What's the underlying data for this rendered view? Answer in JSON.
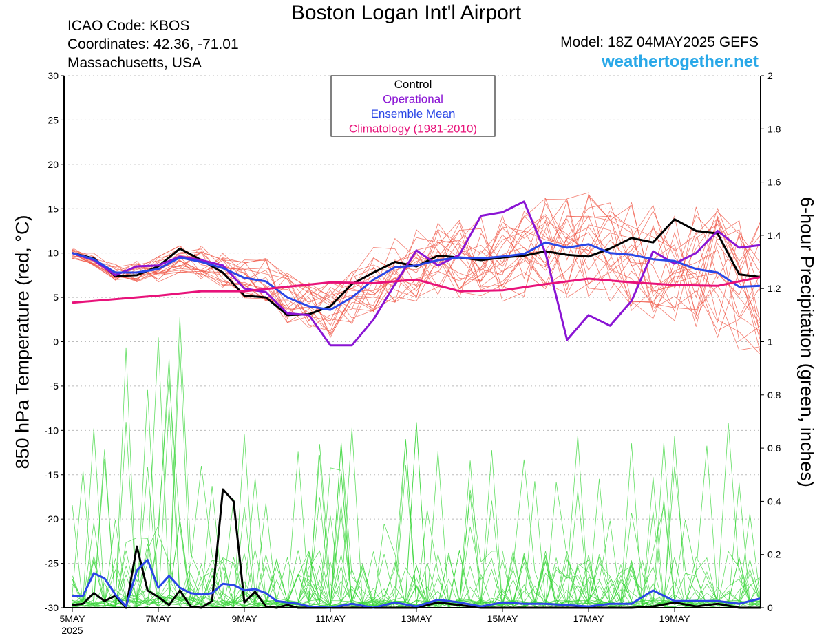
{
  "header": {
    "title": "Boston Logan Int'l Airport",
    "icao": "ICAO Code: KBOS",
    "coords": "Coordinates: 42.36, -71.01",
    "region": "Massachusetts, USA",
    "model": "Model: 18Z 04MAY2025 GEFS",
    "site": "weathertogether.net"
  },
  "colors": {
    "control": "#000000",
    "operational": "#8a14d4",
    "ensemble_mean": "#2a46e6",
    "climatology": "#e8127a",
    "members_temp": "#f05a4a",
    "members_precip": "#3ad63a"
  },
  "chart_data": {
    "type": "line",
    "title": "Boston Logan Int'l Airport",
    "ylabel": "850 hPa Temperature (red, °C)",
    "y2label": "6-hour Precipitation (green, inches)",
    "ylim": [
      -30,
      30
    ],
    "y2lim": [
      0,
      2
    ],
    "yticks": [
      "30",
      "25",
      "20",
      "15",
      "10",
      "5",
      "0",
      "-5",
      "-10",
      "-15",
      "-20",
      "-25",
      "-30"
    ],
    "y2ticks": [
      "2",
      "1.8",
      "1.6",
      "1.4",
      "1.2",
      "1",
      "0.8",
      "0.6",
      "0.4",
      "0.2",
      "0"
    ],
    "xlim_days": [
      0,
      16
    ],
    "xticks": [
      "5MAY",
      "7MAY",
      "9MAY",
      "11MAY",
      "13MAY",
      "15MAY",
      "17MAY",
      "19MAY"
    ],
    "xtick_year": "2025",
    "grid": true,
    "legend_position": "top-center",
    "legend": [
      "Control",
      "Operational",
      "Ensemble Mean",
      "Climatology (1981-2010)"
    ],
    "temp_series": [
      {
        "name": "Control",
        "x": [
          0,
          0.5,
          1,
          1.5,
          2,
          2.5,
          3,
          3.5,
          4,
          4.5,
          5,
          5.5,
          6,
          6.5,
          7,
          7.5,
          8,
          8.5,
          9,
          9.5,
          10,
          10.5,
          11,
          11.5,
          12,
          12.5,
          13,
          13.5,
          14,
          14.5,
          15,
          15.5,
          16
        ],
        "y": [
          10,
          9.4,
          7.4,
          7.5,
          8.5,
          10.5,
          9.2,
          7.8,
          5.2,
          5,
          3,
          3.1,
          4,
          6.5,
          7.8,
          9,
          8.5,
          9.7,
          9.5,
          9.2,
          9.5,
          9.7,
          10.2,
          9.8,
          9.6,
          10.5,
          11.7,
          11.2,
          13.8,
          12.5,
          12.2,
          7.6,
          7.3
        ]
      },
      {
        "name": "Operational",
        "x": [
          0,
          0.5,
          1,
          1.5,
          2,
          2.5,
          3,
          3.5,
          4,
          4.5,
          5,
          5.5,
          6,
          6.5,
          7,
          7.5,
          8,
          8.5,
          9,
          9.5,
          10,
          10.5,
          11,
          11.5,
          12,
          12.5,
          13,
          13.5,
          14,
          14.5,
          15,
          15.5,
          16
        ],
        "y": [
          10,
          9.2,
          7.5,
          8.5,
          8.6,
          9.6,
          9.2,
          8.6,
          6,
          5.6,
          3.2,
          3,
          -0.4,
          -0.4,
          2.5,
          6.5,
          10.3,
          8.6,
          9.8,
          14.2,
          14.6,
          15.8,
          10,
          0.2,
          3,
          1.8,
          4.6,
          10.2,
          8.8,
          10,
          12.5,
          10.6,
          10.9
        ]
      },
      {
        "name": "Ensemble Mean",
        "x": [
          0,
          0.5,
          1,
          1.5,
          2,
          2.5,
          3,
          3.5,
          4,
          4.5,
          5,
          5.5,
          6,
          6.5,
          7,
          7.5,
          8,
          8.5,
          9,
          9.5,
          10,
          10.5,
          11,
          11.5,
          12,
          12.5,
          13,
          13.5,
          14,
          14.5,
          15,
          15.5,
          16
        ],
        "y": [
          10,
          9.3,
          7.8,
          7.8,
          8.2,
          9.5,
          9,
          8.3,
          7.2,
          6.8,
          5,
          4,
          3.6,
          5,
          7,
          8.4,
          8.6,
          9.2,
          9.5,
          9.4,
          9.6,
          9.9,
          11.2,
          10.6,
          11,
          10,
          9.8,
          9.3,
          9.1,
          8.2,
          7.8,
          6.2,
          6.3
        ]
      },
      {
        "name": "Climatology (1981-2010)",
        "x": [
          0,
          2,
          3,
          4,
          5,
          6,
          7,
          8,
          9,
          10,
          11,
          12,
          13,
          14,
          15,
          16
        ],
        "y": [
          4.4,
          5.2,
          5.7,
          5.7,
          6.2,
          6.7,
          6.6,
          7,
          5.7,
          5.8,
          6.5,
          7.1,
          6.7,
          6.4,
          6.3,
          7.3
        ]
      }
    ],
    "precip_series": [
      {
        "name": "Control",
        "x": [
          0,
          0.25,
          0.5,
          0.75,
          1,
          1.25,
          1.5,
          1.75,
          2,
          2.25,
          2.5,
          2.75,
          3,
          3.25,
          3.5,
          3.75,
          4,
          4.25,
          4.5,
          4.75,
          5,
          5.25,
          5.5,
          6,
          6.5,
          7,
          7.5,
          8,
          8.5,
          9,
          9.5,
          10,
          10.5,
          11,
          11.5,
          12,
          12.5,
          13,
          13.5,
          14,
          14.5,
          15,
          15.5,
          16
        ],
        "y": [
          0.01,
          0.015,
          0.055,
          0.025,
          0.045,
          0,
          0.23,
          0.065,
          0.04,
          0.01,
          0.065,
          0.005,
          0,
          0.025,
          0.445,
          0.4,
          0.02,
          0.06,
          0.005,
          0,
          0.01,
          0,
          0,
          0,
          0,
          0,
          0,
          0,
          0.02,
          0.01,
          0,
          0,
          0,
          0,
          0,
          0,
          0,
          0,
          0.005,
          0.02,
          0.005,
          0.015,
          0,
          0
        ]
      },
      {
        "name": "Ensemble Mean",
        "x": [
          0,
          0.25,
          0.5,
          0.75,
          1,
          1.25,
          1.5,
          1.75,
          2,
          2.25,
          2.5,
          2.75,
          3,
          3.25,
          3.5,
          3.75,
          4,
          4.25,
          4.5,
          4.75,
          5,
          5.25,
          5.5,
          6,
          6.5,
          7,
          7.5,
          8,
          8.5,
          9,
          9.5,
          10,
          10.5,
          11,
          11.5,
          12,
          12.5,
          13,
          13.5,
          14,
          14.5,
          15,
          15.5,
          16
        ],
        "y": [
          0.045,
          0.045,
          0.13,
          0.11,
          0.05,
          0.005,
          0.14,
          0.18,
          0.075,
          0.12,
          0.075,
          0.055,
          0.05,
          0.055,
          0.09,
          0.085,
          0.065,
          0.07,
          0.055,
          0.025,
          0.02,
          0.015,
          0.005,
          0,
          0.015,
          0,
          0.02,
          0.005,
          0.03,
          0.02,
          0.005,
          0.02,
          0.015,
          0.015,
          0.01,
          0.005,
          0.015,
          0.015,
          0.065,
          0.025,
          0.025,
          0.025,
          0.015,
          0.035
        ]
      }
    ]
  }
}
